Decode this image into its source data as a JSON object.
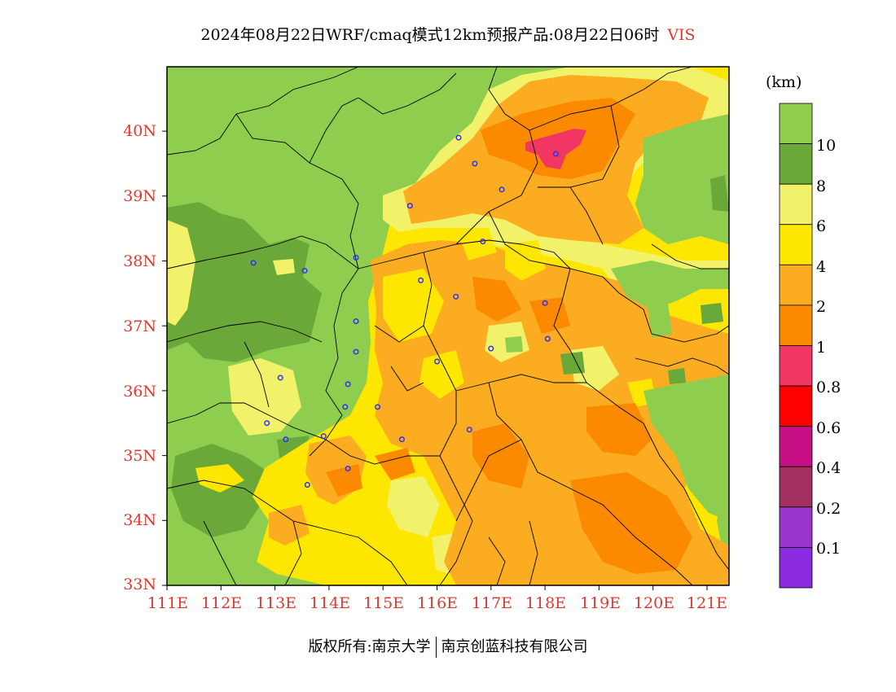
{
  "title": "2024年08月22日WRF/cmaq模式12km预报产品:08月22日06时",
  "variable": "VIS",
  "unit": "(km)",
  "latitudes": [
    "40N",
    "39N",
    "38N",
    "37N",
    "36N",
    "35N",
    "34N",
    "33N"
  ],
  "longitudes": [
    "111E",
    "112E",
    "113E",
    "114E",
    "115E",
    "116E",
    "117E",
    "118E",
    "119E",
    "120E",
    "121E"
  ],
  "colorbar": {
    "labels": [
      "10",
      "8",
      "6",
      "4",
      "2",
      "1",
      "0.8",
      "0.6",
      "0.4",
      "0.2",
      "0.1"
    ],
    "colors": [
      "#8fcd4f",
      "#6aa83a",
      "#f1f26a",
      "#fde600",
      "#fbac21",
      "#fb8a00",
      "#f23663",
      "#fe0000",
      "#c70f86",
      "#a22f60",
      "#9a36cb",
      "#8a2be2"
    ]
  },
  "stations": [
    [
      116.4,
      39.9
    ],
    [
      116.7,
      39.5
    ],
    [
      117.2,
      39.1
    ],
    [
      115.5,
      38.85
    ],
    [
      116.85,
      38.3
    ],
    [
      114.5,
      38.05
    ],
    [
      112.6,
      37.97
    ],
    [
      113.55,
      37.85
    ],
    [
      115.7,
      37.7
    ],
    [
      116.35,
      37.45
    ],
    [
      118.0,
      37.35
    ],
    [
      114.5,
      37.07
    ],
    [
      117.0,
      36.65
    ],
    [
      118.05,
      36.8
    ],
    [
      114.5,
      36.6
    ],
    [
      116.0,
      36.45
    ],
    [
      113.1,
      36.2
    ],
    [
      114.35,
      36.1
    ],
    [
      114.3,
      35.75
    ],
    [
      114.9,
      35.75
    ],
    [
      112.85,
      35.5
    ],
    [
      116.6,
      35.4
    ],
    [
      113.9,
      35.3
    ],
    [
      113.2,
      35.25
    ],
    [
      115.35,
      35.25
    ],
    [
      114.35,
      34.8
    ],
    [
      113.6,
      34.55
    ],
    [
      118.2,
      39.65
    ]
  ],
  "footer": {
    "left": "版权所有:南京大学",
    "right": "南京创蓝科技有限公司"
  }
}
